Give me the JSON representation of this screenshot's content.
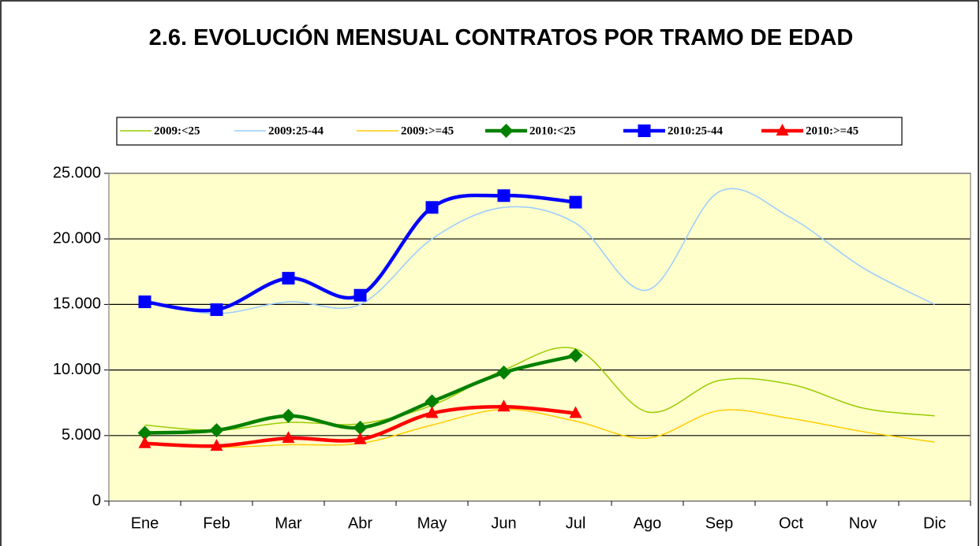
{
  "chart_data": {
    "type": "line",
    "title": "2.6. EVOLUCIÓN MENSUAL CONTRATOS POR TRAMO DE EDAD",
    "categories": [
      "Ene",
      "Feb",
      "Mar",
      "Abr",
      "May",
      "Jun",
      "Jul",
      "Ago",
      "Sep",
      "Oct",
      "Nov",
      "Dic"
    ],
    "series": [
      {
        "name": "2009:<25",
        "color": "#99cc00",
        "values": [
          5800,
          5400,
          6000,
          5900,
          7300,
          10000,
          11600,
          6800,
          9200,
          8900,
          7100,
          6500
        ]
      },
      {
        "name": "2009:25-44",
        "color": "#99ccff",
        "values": [
          15200,
          14300,
          15200,
          15000,
          20000,
          22400,
          21200,
          16100,
          23600,
          21600,
          17800,
          15000
        ]
      },
      {
        "name": "2009:>=45",
        "color": "#ffcc00",
        "values": [
          4400,
          4100,
          4300,
          4400,
          5800,
          7000,
          6100,
          4800,
          6900,
          6300,
          5300,
          4500
        ]
      },
      {
        "name": "2010:<25",
        "color": "#008000",
        "marker": "diamond",
        "values": [
          5200,
          5400,
          6500,
          5600,
          7600,
          9800,
          11100,
          null,
          null,
          null,
          null,
          null
        ]
      },
      {
        "name": "2010:25-44",
        "color": "#0000ff",
        "marker": "square",
        "values": [
          15200,
          14600,
          17000,
          15700,
          22400,
          23300,
          22800,
          null,
          null,
          null,
          null,
          null
        ]
      },
      {
        "name": "2010:>=45",
        "color": "#ff0000",
        "marker": "triangle",
        "values": [
          4400,
          4200,
          4800,
          4700,
          6700,
          7200,
          6700,
          null,
          null,
          null,
          null,
          null
        ]
      }
    ],
    "ylim": [
      0,
      25000
    ],
    "yticks": [
      0,
      {
        "value": 5000,
        "label": "5.000"
      },
      {
        "value": 10000,
        "label": "10.000"
      },
      {
        "value": 15000,
        "label": "15.000"
      },
      {
        "value": 20000,
        "label": "20.000"
      },
      {
        "value": 25000,
        "label": "25.000"
      }
    ],
    "grid": true,
    "legend": "top"
  }
}
